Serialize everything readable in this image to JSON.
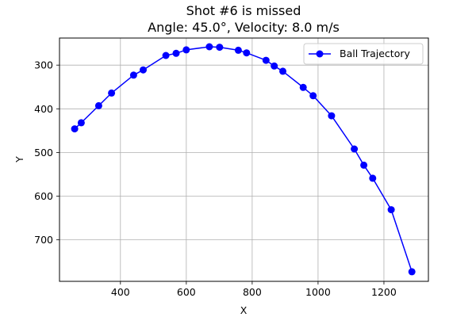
{
  "chart_data": {
    "type": "line",
    "title": "Shot #6 is missed",
    "subtitle": "Angle: 45.0°, Velocity: 8.0 m/s",
    "xlabel": "X",
    "ylabel": "Y",
    "xlim": [
      215,
      1335
    ],
    "ylim": [
      795,
      238
    ],
    "y_inverted": true,
    "grid": true,
    "legend_position": "upper-right",
    "xticks": [
      400,
      600,
      800,
      1000,
      1200
    ],
    "yticks": [
      300,
      400,
      500,
      600,
      700
    ],
    "series": [
      {
        "name": "Ball Trajectory",
        "color": "#0000ff",
        "marker": "circle",
        "x": [
          261,
          281,
          334,
          373,
          440,
          469,
          538,
          569,
          600,
          670,
          701,
          758,
          783,
          842,
          867,
          893,
          955,
          985,
          1041,
          1110,
          1139,
          1166,
          1222,
          1285
        ],
        "y": [
          446,
          432,
          393,
          364,
          323,
          311,
          278,
          273,
          265,
          258,
          259,
          266,
          272,
          289,
          302,
          314,
          351,
          370,
          416,
          492,
          529,
          559,
          631,
          773
        ]
      }
    ]
  }
}
